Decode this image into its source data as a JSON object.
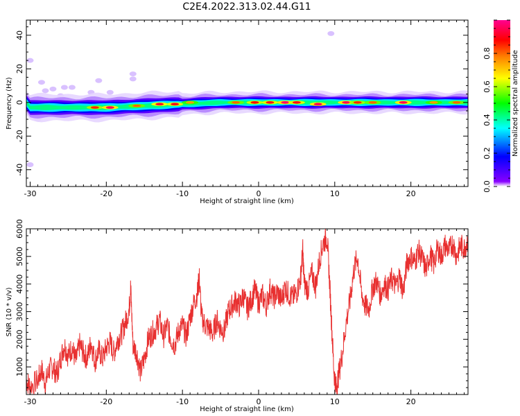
{
  "title": "C2E4.2022.313.02.44.G11",
  "chart_data": [
    {
      "type": "heatmap",
      "xlabel": "Height of straight line (km)",
      "ylabel": "Frequency (Hz)",
      "xlim": [
        -30.5,
        27.5
      ],
      "ylim": [
        -50,
        49
      ],
      "xticks": [
        -30,
        -20,
        -10,
        0,
        10,
        20
      ],
      "yticks": [
        -40,
        -20,
        0,
        20,
        40
      ],
      "colorbar": {
        "label": "Normalized spectral amplitude",
        "range": [
          0.0,
          1.0
        ],
        "ticks": [
          0.0,
          0.2,
          0.4,
          0.6,
          0.8
        ],
        "colormap": [
          "#7700ff",
          "#0000ff",
          "#00ffff",
          "#00ff00",
          "#ffff00",
          "#ff7f00",
          "#ff0000",
          "#ff0090"
        ]
      },
      "band_center_hz": [
        {
          "x": -30,
          "f": -3
        },
        {
          "x": -25,
          "f": -3
        },
        {
          "x": -20,
          "f": -3
        },
        {
          "x": -15,
          "f": -2
        },
        {
          "x": -10,
          "f": -1
        },
        {
          "x": -5,
          "f": 0
        },
        {
          "x": 0,
          "f": 0
        },
        {
          "x": 5,
          "f": 0
        },
        {
          "x": 10,
          "f": 0
        },
        {
          "x": 15,
          "f": 0
        },
        {
          "x": 20,
          "f": 0
        },
        {
          "x": 27,
          "f": 0
        }
      ],
      "peaks": [
        {
          "x": -21.5,
          "f": -3,
          "amp": 0.85
        },
        {
          "x": -19.5,
          "f": -3,
          "amp": 0.95
        },
        {
          "x": -16,
          "f": -2,
          "amp": 0.8
        },
        {
          "x": -13,
          "f": -1,
          "amp": 0.92
        },
        {
          "x": -11,
          "f": -1,
          "amp": 0.9
        },
        {
          "x": -9,
          "f": 0,
          "amp": 0.75
        },
        {
          "x": -3,
          "f": 0,
          "amp": 0.8
        },
        {
          "x": -0.5,
          "f": 0,
          "amp": 0.88
        },
        {
          "x": 1.5,
          "f": 0,
          "amp": 0.9
        },
        {
          "x": 3.5,
          "f": 0,
          "amp": 0.97
        },
        {
          "x": 5,
          "f": 0,
          "amp": 0.9
        },
        {
          "x": 7.8,
          "f": -1,
          "amp": 0.95
        },
        {
          "x": 11.5,
          "f": 0,
          "amp": 0.95
        },
        {
          "x": 13,
          "f": 0,
          "amp": 0.85
        },
        {
          "x": 15,
          "f": 0,
          "amp": 0.8
        },
        {
          "x": 19,
          "f": 0,
          "amp": 0.95
        },
        {
          "x": 23,
          "f": 0,
          "amp": 0.75
        },
        {
          "x": 26,
          "f": 0,
          "amp": 0.8
        }
      ],
      "noise_blobs": [
        {
          "x": -30,
          "f": 25
        },
        {
          "x": -28,
          "f": 7
        },
        {
          "x": -27,
          "f": 8
        },
        {
          "x": -25.5,
          "f": 9
        },
        {
          "x": -24.5,
          "f": 9
        },
        {
          "x": -22,
          "f": 6
        },
        {
          "x": -21,
          "f": 13
        },
        {
          "x": -19.5,
          "f": 6
        },
        {
          "x": -16.5,
          "f": 14
        },
        {
          "x": -16.5,
          "f": 17
        },
        {
          "x": -15,
          "f": 4
        },
        {
          "x": -29,
          "f": -10
        },
        {
          "x": -30,
          "f": -37
        },
        {
          "x": 9.5,
          "f": 41
        },
        {
          "x": -28.5,
          "f": 12
        },
        {
          "x": -26,
          "f": 4
        },
        {
          "x": -12,
          "f": 3
        },
        {
          "x": -9.5,
          "f": 3
        }
      ]
    },
    {
      "type": "line",
      "xlabel": "Height of straight line (km)",
      "ylabel": "SNR (10 * v/v)",
      "xlim": [
        -30.5,
        27.5
      ],
      "ylim": [
        0,
        6000
      ],
      "xticks": [
        -30,
        -20,
        -10,
        0,
        10,
        20
      ],
      "yticks": [
        1000,
        2000,
        3000,
        4000,
        5000,
        6000
      ],
      "series": [
        {
          "color": "#e83030",
          "points": [
            [
              -30.5,
              500
            ],
            [
              -30,
              300
            ],
            [
              -29,
              500
            ],
            [
              -28.5,
              900
            ],
            [
              -28,
              400
            ],
            [
              -27.5,
              900
            ],
            [
              -27,
              1000
            ],
            [
              -26.5,
              700
            ],
            [
              -26,
              1300
            ],
            [
              -25.5,
              1800
            ],
            [
              -25,
              1400
            ],
            [
              -24.5,
              1700
            ],
            [
              -24,
              1200
            ],
            [
              -23.5,
              1800
            ],
            [
              -23,
              1500
            ],
            [
              -22.5,
              1300
            ],
            [
              -22,
              1900
            ],
            [
              -21.5,
              1200
            ],
            [
              -21,
              1600
            ],
            [
              -20.5,
              1300
            ],
            [
              -20,
              1700
            ],
            [
              -19.5,
              1900
            ],
            [
              -19,
              1500
            ],
            [
              -18.5,
              2000
            ],
            [
              -18,
              2200
            ],
            [
              -17.5,
              2600
            ],
            [
              -17,
              3100
            ],
            [
              -16.8,
              3900
            ],
            [
              -16.5,
              1800
            ],
            [
              -16,
              1500
            ],
            [
              -15.5,
              800
            ],
            [
              -15,
              1300
            ],
            [
              -14.5,
              2000
            ],
            [
              -14,
              2200
            ],
            [
              -13.5,
              2400
            ],
            [
              -13,
              2700
            ],
            [
              -12.5,
              2100
            ],
            [
              -12,
              2500
            ],
            [
              -11.5,
              2000
            ],
            [
              -11,
              1800
            ],
            [
              -10.5,
              2300
            ],
            [
              -10,
              2500
            ],
            [
              -9.5,
              2100
            ],
            [
              -9,
              2800
            ],
            [
              -8.5,
              3300
            ],
            [
              -8,
              3700
            ],
            [
              -7.8,
              4300
            ],
            [
              -7.5,
              2800
            ],
            [
              -7,
              2500
            ],
            [
              -6.5,
              2400
            ],
            [
              -6,
              2200
            ],
            [
              -5.5,
              2700
            ],
            [
              -5,
              2400
            ],
            [
              -4.5,
              2300
            ],
            [
              -4,
              3000
            ],
            [
              -3.5,
              3200
            ],
            [
              -3,
              3400
            ],
            [
              -2.5,
              3200
            ],
            [
              -2,
              3600
            ],
            [
              -1.5,
              3100
            ],
            [
              -1,
              3400
            ],
            [
              -0.5,
              3800
            ],
            [
              0,
              3300
            ],
            [
              0.5,
              3600
            ],
            [
              1,
              3200
            ],
            [
              1.5,
              3800
            ],
            [
              2,
              3500
            ],
            [
              2.5,
              3700
            ],
            [
              3,
              3400
            ],
            [
              3.5,
              3900
            ],
            [
              4,
              3600
            ],
            [
              4.5,
              3500
            ],
            [
              5,
              3700
            ],
            [
              5.5,
              4200
            ],
            [
              5.8,
              5200
            ],
            [
              6,
              4000
            ],
            [
              6.5,
              3800
            ],
            [
              7,
              4400
            ],
            [
              7.5,
              3900
            ],
            [
              8,
              4900
            ],
            [
              8.5,
              5500
            ],
            [
              9,
              5700
            ],
            [
              9.3,
              4200
            ],
            [
              9.6,
              2500
            ],
            [
              9.9,
              800
            ],
            [
              10.2,
              200
            ],
            [
              10.5,
              700
            ],
            [
              11,
              1500
            ],
            [
              11.5,
              2600
            ],
            [
              12,
              3400
            ],
            [
              12.5,
              4500
            ],
            [
              13,
              5000
            ],
            [
              13.5,
              3700
            ],
            [
              14,
              3200
            ],
            [
              14.5,
              3100
            ],
            [
              15,
              3900
            ],
            [
              15.5,
              4100
            ],
            [
              16,
              3600
            ],
            [
              16.5,
              4000
            ],
            [
              17,
              3800
            ],
            [
              17.5,
              4200
            ],
            [
              18,
              3900
            ],
            [
              18.5,
              4300
            ],
            [
              19,
              3700
            ],
            [
              19.5,
              4800
            ],
            [
              20,
              5000
            ],
            [
              20.5,
              4800
            ],
            [
              21,
              5200
            ],
            [
              21.5,
              4900
            ],
            [
              22,
              4500
            ],
            [
              22.5,
              5100
            ],
            [
              23,
              4700
            ],
            [
              23.5,
              5300
            ],
            [
              24,
              5000
            ],
            [
              24.5,
              5400
            ],
            [
              25,
              5200
            ],
            [
              25.5,
              5500
            ],
            [
              26,
              5000
            ],
            [
              26.5,
              5400
            ],
            [
              27,
              5300
            ],
            [
              27.5,
              5600
            ]
          ]
        }
      ]
    }
  ]
}
